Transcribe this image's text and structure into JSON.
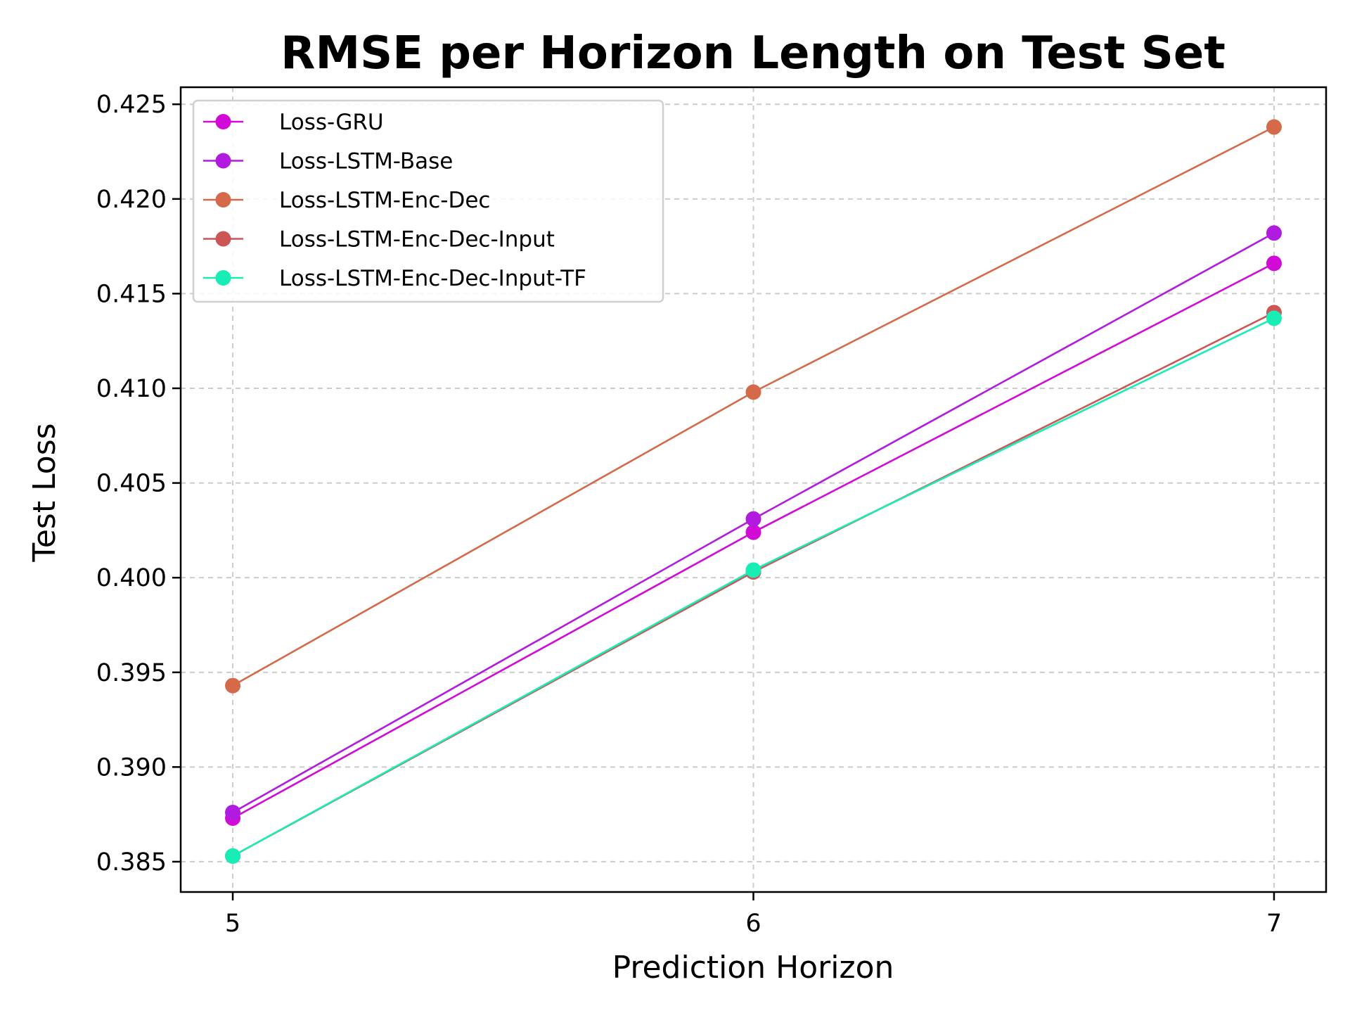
{
  "chart_data": {
    "type": "line",
    "title": "RMSE per Horizon Length on Test Set",
    "xlabel": "Prediction Horizon",
    "ylabel": "Test Loss",
    "x": [
      5,
      6,
      7
    ],
    "xlim": [
      4.9,
      7.1
    ],
    "ylim": [
      0.3834,
      0.4259
    ],
    "x_ticks": [
      5,
      6,
      7
    ],
    "x_tick_labels": [
      "5",
      "6",
      "7"
    ],
    "y_ticks": [
      0.385,
      0.39,
      0.395,
      0.4,
      0.405,
      0.41,
      0.415,
      0.42,
      0.425
    ],
    "y_tick_labels": [
      "0.385",
      "0.390",
      "0.395",
      "0.400",
      "0.405",
      "0.410",
      "0.415",
      "0.420",
      "0.425"
    ],
    "grid": true,
    "legend_position": "top-left",
    "series": [
      {
        "name": "Loss-GRU",
        "color": "#d20ad8",
        "values": [
          0.3873,
          0.4024,
          0.4166
        ]
      },
      {
        "name": "Loss-LSTM-Base",
        "color": "#b11be0",
        "values": [
          0.3876,
          0.4031,
          0.4182
        ]
      },
      {
        "name": "Loss-LSTM-Enc-Dec",
        "color": "#d56a4a",
        "values": [
          0.3943,
          0.4098,
          0.4238
        ]
      },
      {
        "name": "Loss-LSTM-Enc-Dec-Input",
        "color": "#cc5555",
        "values": [
          0.3853,
          0.4003,
          0.414
        ]
      },
      {
        "name": "Loss-LSTM-Enc-Dec-Input-TF",
        "color": "#17edb5",
        "values": [
          0.3853,
          0.4004,
          0.4137
        ]
      }
    ]
  }
}
